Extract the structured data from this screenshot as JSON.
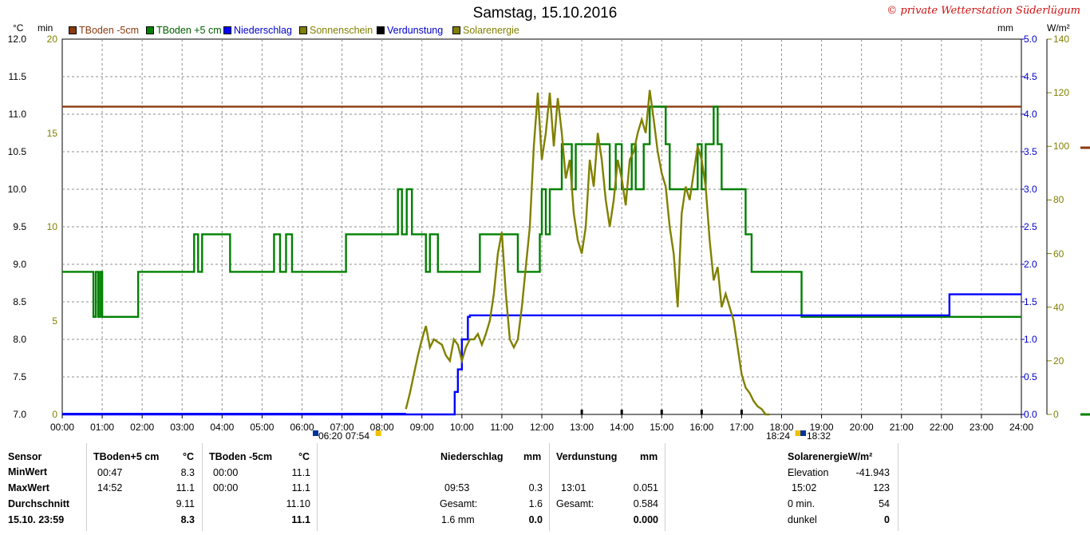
{
  "header": {
    "title": "Samstag, 15.10.2016",
    "copyright": "© private Wetterstation Süderlügum"
  },
  "units": {
    "left1": "°C",
    "left2": "min",
    "right1": "mm",
    "right2": "W/m²"
  },
  "axis": {
    "left_temp_ticks": [
      "12.0",
      "11.5",
      "11.0",
      "10.5",
      "10.0",
      "9.5",
      "9.0",
      "8.5",
      "8.0",
      "7.5",
      "7.0"
    ],
    "left_min_ticks": [
      "20",
      "15",
      "10",
      "5",
      "0"
    ],
    "right_mm_ticks": [
      "5.0",
      "4.5",
      "4.0",
      "3.5",
      "3.0",
      "2.5",
      "2.0",
      "1.5",
      "1.0",
      "0.5",
      "0.0"
    ],
    "right_w_ticks": [
      "140",
      "120",
      "100",
      "80",
      "60",
      "40",
      "20",
      "0"
    ],
    "x_ticks": [
      "00:00",
      "01:00",
      "02:00",
      "03:00",
      "04:00",
      "05:00",
      "06:00",
      "07:00",
      "08:00",
      "09:00",
      "10:00",
      "11:00",
      "12:00",
      "13:00",
      "14:00",
      "15:00",
      "16:00",
      "17:00",
      "18:00",
      "19:00",
      "20:00",
      "21:00",
      "22:00",
      "23:00",
      "24:00"
    ]
  },
  "sun": {
    "sunrise": "06:20",
    "dawn": "07:54",
    "dusk": "18:24",
    "sunset": "18:32"
  },
  "chart_data": {
    "type": "line",
    "title": "Samstag, 15.10.2016",
    "x_unit": "hour",
    "x_range": [
      0,
      24
    ],
    "y_ranges": {
      "temperature_c": [
        7.0,
        12.0
      ],
      "minutes": [
        0,
        20
      ],
      "precip_mm": [
        0.0,
        5.0
      ],
      "solar_wm2": [
        0,
        140
      ]
    },
    "grid": true,
    "legend_position": "top-left",
    "series": [
      {
        "name": "TBoden -5cm",
        "color": "#8b3a0f",
        "axis": "temperature_c",
        "x": [
          0,
          24
        ],
        "y": [
          11.1,
          11.1
        ]
      },
      {
        "name": "TBoden +5 cm",
        "color": "#008000",
        "axis": "temperature_c",
        "step": true,
        "x": [
          0,
          0.78,
          0.84,
          0.9,
          0.95,
          1.0,
          1.9,
          3.3,
          3.4,
          3.5,
          4.2,
          5.3,
          5.45,
          5.6,
          5.75,
          7.1,
          8.4,
          8.5,
          8.62,
          8.75,
          8.85,
          9.1,
          9.2,
          9.4,
          9.5,
          10.45,
          11.4,
          11.95,
          12.0,
          12.1,
          12.2,
          12.5,
          12.75,
          12.85,
          13.7,
          13.85,
          14.0,
          14.25,
          14.35,
          14.55,
          14.7,
          15.1,
          15.2,
          15.5,
          15.9,
          16.0,
          16.1,
          16.3,
          16.4,
          16.5,
          16.6,
          17.0,
          17.1,
          17.25,
          18.5,
          22.0
        ],
        "y": [
          8.9,
          8.3,
          8.9,
          8.3,
          8.9,
          8.3,
          8.9,
          9.4,
          8.9,
          9.4,
          8.9,
          9.4,
          8.9,
          9.4,
          8.9,
          9.4,
          10.0,
          9.4,
          10.0,
          9.4,
          9.4,
          8.9,
          9.4,
          8.9,
          8.9,
          9.4,
          8.9,
          9.4,
          10.0,
          9.4,
          10.0,
          10.6,
          10.0,
          10.6,
          10.0,
          10.6,
          10.0,
          10.6,
          10.0,
          10.6,
          11.1,
          10.6,
          10.0,
          10.0,
          10.6,
          10.0,
          10.6,
          11.1,
          10.6,
          10.0,
          10.0,
          10.0,
          9.4,
          8.9,
          8.3,
          8.3
        ]
      },
      {
        "name": "Niederschlag",
        "color": "#0000ff",
        "axis": "precip_mm",
        "step": true,
        "x": [
          0,
          9.82,
          9.9,
          10.0,
          10.15,
          10.2,
          22.2,
          24
        ],
        "y": [
          0.0,
          0.3,
          0.6,
          1.0,
          1.3,
          1.32,
          1.6,
          1.6
        ]
      },
      {
        "name": "Sonnenschein",
        "color": "#808000",
        "axis": "minutes",
        "x": [],
        "y": []
      },
      {
        "name": "Verdunstung",
        "color": "#000000",
        "axis": "precip_mm",
        "x": [],
        "y": []
      },
      {
        "name": "Solarenergie",
        "color": "#808000",
        "axis": "solar_wm2",
        "x": [
          8.6,
          8.7,
          8.8,
          8.9,
          9.0,
          9.1,
          9.2,
          9.3,
          9.4,
          9.5,
          9.6,
          9.7,
          9.8,
          9.9,
          10.0,
          10.1,
          10.2,
          10.3,
          10.4,
          10.5,
          10.6,
          10.7,
          10.8,
          10.9,
          11.0,
          11.1,
          11.2,
          11.3,
          11.4,
          11.5,
          11.6,
          11.7,
          11.8,
          11.9,
          12.0,
          12.1,
          12.2,
          12.3,
          12.4,
          12.5,
          12.6,
          12.7,
          12.8,
          12.9,
          13.0,
          13.1,
          13.2,
          13.3,
          13.4,
          13.5,
          13.6,
          13.7,
          13.8,
          13.9,
          14.0,
          14.1,
          14.2,
          14.3,
          14.4,
          14.5,
          14.6,
          14.7,
          14.8,
          14.9,
          15.0,
          15.1,
          15.2,
          15.3,
          15.4,
          15.5,
          15.6,
          15.7,
          15.8,
          15.9,
          16.0,
          16.1,
          16.2,
          16.3,
          16.4,
          16.5,
          16.6,
          16.7,
          16.8,
          16.9,
          17.0,
          17.1,
          17.2,
          17.3,
          17.4,
          17.5,
          17.6,
          17.7
        ],
        "y": [
          2,
          8,
          15,
          22,
          28,
          33,
          25,
          28,
          27,
          26,
          22,
          20,
          28,
          26,
          20,
          25,
          28,
          28,
          30,
          26,
          30,
          35,
          45,
          60,
          68,
          45,
          28,
          25,
          28,
          40,
          55,
          70,
          100,
          120,
          95,
          105,
          120,
          100,
          118,
          105,
          88,
          95,
          75,
          65,
          60,
          70,
          95,
          85,
          105,
          95,
          80,
          70,
          80,
          95,
          88,
          78,
          95,
          98,
          105,
          110,
          105,
          121,
          110,
          98,
          90,
          85,
          70,
          60,
          40,
          75,
          85,
          80,
          90,
          100,
          95,
          85,
          65,
          50,
          55,
          40,
          45,
          40,
          35,
          25,
          15,
          10,
          8,
          5,
          3,
          2,
          0,
          0
        ]
      }
    ]
  },
  "table": {
    "sensor_header": "Sensor",
    "row_labels": [
      "MinWert",
      "MaxWert",
      "Durchschnitt",
      "15.10. 23:59"
    ],
    "tboden_p5": {
      "header": "TBoden+5 cm",
      "unit": "°C",
      "min_time": "00:47",
      "min_val": "8.3",
      "max_time": "14:52",
      "max_val": "11.1",
      "avg": "9.11",
      "current": "8.3"
    },
    "tboden_m5": {
      "header": "TBoden -5cm",
      "unit": "°C",
      "min_time": "00:00",
      "min_val": "11.1",
      "max_time": "00:00",
      "max_val": "11.1",
      "avg": "11.10",
      "current": "11.1"
    },
    "niederschlag": {
      "header": "Niederschlag",
      "unit": "mm",
      "time": "09:53",
      "val": "0.3",
      "gesamt_label": "Gesamt:",
      "gesamt_val": "1.6",
      "last_label": "1.6 mm",
      "last_val": "0.0"
    },
    "verdunstung": {
      "header": "Verdunstung",
      "unit": "mm",
      "time": "13:01",
      "val": "0.051",
      "gesamt_label": "Gesamt:",
      "gesamt_val": "0.584",
      "last_val": "0.000"
    },
    "solar": {
      "header": "SolarenergieW/m²",
      "elev_label": "Elevation",
      "elev_val": "-41.943",
      "max_time": "15:02",
      "max_val": "123",
      "zero_label": "0 min.",
      "zero_val": "54",
      "dark_label": "dunkel",
      "dark_val": "0"
    }
  }
}
